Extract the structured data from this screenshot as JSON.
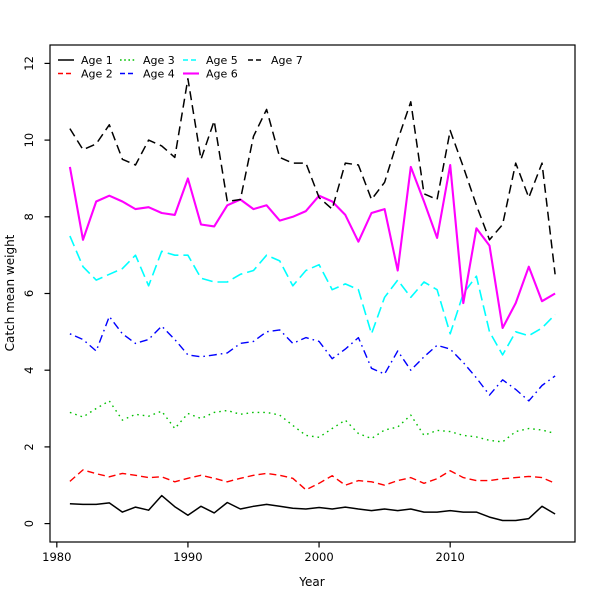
{
  "chart_data": {
    "type": "line",
    "title": "",
    "xlabel": "Year",
    "ylabel": "Catch mean weight",
    "grid": false,
    "legend_position": "top-left-inside",
    "xlim": [
      1979.48,
      2019.52
    ],
    "ylim": [
      -0.48,
      12.48
    ],
    "xticks": [
      1980,
      1990,
      2000,
      2010
    ],
    "yticks": [
      0,
      2,
      4,
      6,
      8,
      10,
      12
    ],
    "x": [
      1981,
      1982,
      1983,
      1984,
      1985,
      1986,
      1987,
      1988,
      1989,
      1990,
      1991,
      1992,
      1993,
      1994,
      1995,
      1996,
      1997,
      1998,
      1999,
      2000,
      2001,
      2002,
      2003,
      2004,
      2005,
      2006,
      2007,
      2008,
      2009,
      2010,
      2011,
      2012,
      2013,
      2014,
      2015,
      2016,
      2017,
      2018
    ],
    "series": [
      {
        "name": "Age 1",
        "color": "#000000",
        "dash": "solid",
        "width": 1.5,
        "values": [
          0.52,
          0.5,
          0.5,
          0.54,
          0.3,
          0.43,
          0.35,
          0.73,
          0.44,
          0.22,
          0.45,
          0.28,
          0.55,
          0.38,
          0.45,
          0.5,
          0.45,
          0.4,
          0.38,
          0.42,
          0.38,
          0.43,
          0.38,
          0.34,
          0.38,
          0.34,
          0.38,
          0.3,
          0.3,
          0.34,
          0.3,
          0.3,
          0.17,
          0.08,
          0.08,
          0.13,
          0.45,
          0.25
        ]
      },
      {
        "name": "Age 2",
        "color": "#ff0000",
        "dash": "dashed",
        "width": 1.4,
        "values": [
          1.1,
          1.4,
          1.3,
          1.22,
          1.31,
          1.26,
          1.2,
          1.22,
          1.09,
          1.18,
          1.26,
          1.18,
          1.09,
          1.18,
          1.26,
          1.31,
          1.26,
          1.18,
          0.88,
          1.05,
          1.25,
          1.0,
          1.12,
          1.09,
          1.0,
          1.12,
          1.2,
          1.05,
          1.17,
          1.38,
          1.2,
          1.12,
          1.12,
          1.17,
          1.2,
          1.23,
          1.2,
          1.05
        ]
      },
      {
        "name": "Age 3",
        "color": "#00c000",
        "dash": "dotted",
        "width": 1.4,
        "values": [
          2.9,
          2.78,
          3.0,
          3.2,
          2.7,
          2.85,
          2.8,
          2.93,
          2.48,
          2.87,
          2.74,
          2.9,
          2.95,
          2.85,
          2.9,
          2.9,
          2.83,
          2.56,
          2.3,
          2.25,
          2.48,
          2.7,
          2.35,
          2.22,
          2.44,
          2.52,
          2.83,
          2.3,
          2.43,
          2.4,
          2.3,
          2.26,
          2.17,
          2.13,
          2.4,
          2.48,
          2.44,
          2.35
        ]
      },
      {
        "name": "Age 4",
        "color": "#0000ff",
        "dash": "dotdash",
        "width": 1.4,
        "values": [
          4.95,
          4.8,
          4.5,
          5.4,
          4.95,
          4.7,
          4.8,
          5.15,
          4.8,
          4.4,
          4.35,
          4.4,
          4.45,
          4.7,
          4.75,
          5.0,
          5.05,
          4.7,
          4.85,
          4.75,
          4.3,
          4.55,
          4.85,
          4.05,
          3.9,
          4.5,
          4.0,
          4.35,
          4.65,
          4.55,
          4.2,
          3.8,
          3.35,
          3.75,
          3.5,
          3.2,
          3.6,
          3.85
        ]
      },
      {
        "name": "Age 5",
        "color": "#00ffff",
        "dash": "longdash",
        "width": 1.6,
        "values": [
          7.5,
          6.7,
          6.35,
          6.5,
          6.65,
          7.0,
          6.2,
          7.1,
          7.0,
          7.0,
          6.4,
          6.3,
          6.3,
          6.5,
          6.6,
          7.0,
          6.85,
          6.2,
          6.6,
          6.75,
          6.1,
          6.25,
          6.1,
          4.95,
          5.9,
          6.35,
          5.9,
          6.3,
          6.1,
          4.95,
          6.0,
          6.45,
          5.0,
          4.4,
          5.0,
          4.9,
          5.1,
          5.45
        ]
      },
      {
        "name": "Age 6",
        "color": "#ff00ff",
        "dash": "solid",
        "width": 2.1,
        "values": [
          9.3,
          7.4,
          8.4,
          8.55,
          8.4,
          8.2,
          8.25,
          8.1,
          8.05,
          9.0,
          7.8,
          7.75,
          8.3,
          8.45,
          8.2,
          8.3,
          7.9,
          8.0,
          8.15,
          8.55,
          8.4,
          8.05,
          7.35,
          8.1,
          8.2,
          6.6,
          9.3,
          8.4,
          7.45,
          9.35,
          5.75,
          7.7,
          7.25,
          5.1,
          5.75,
          6.7,
          5.8,
          6.0
        ]
      },
      {
        "name": "Age 7",
        "color": "#000000",
        "dash": "dashed7",
        "width": 1.5,
        "values": [
          10.3,
          9.75,
          9.9,
          10.4,
          9.5,
          9.35,
          10.0,
          9.85,
          9.55,
          11.6,
          9.5,
          10.5,
          8.4,
          8.45,
          10.1,
          10.8,
          9.55,
          9.4,
          9.4,
          8.5,
          8.2,
          9.4,
          9.35,
          8.45,
          8.9,
          10.0,
          11.0,
          8.6,
          8.45,
          10.25,
          9.3,
          8.3,
          7.4,
          7.8,
          9.4,
          8.5,
          9.4,
          6.5
        ]
      }
    ]
  }
}
